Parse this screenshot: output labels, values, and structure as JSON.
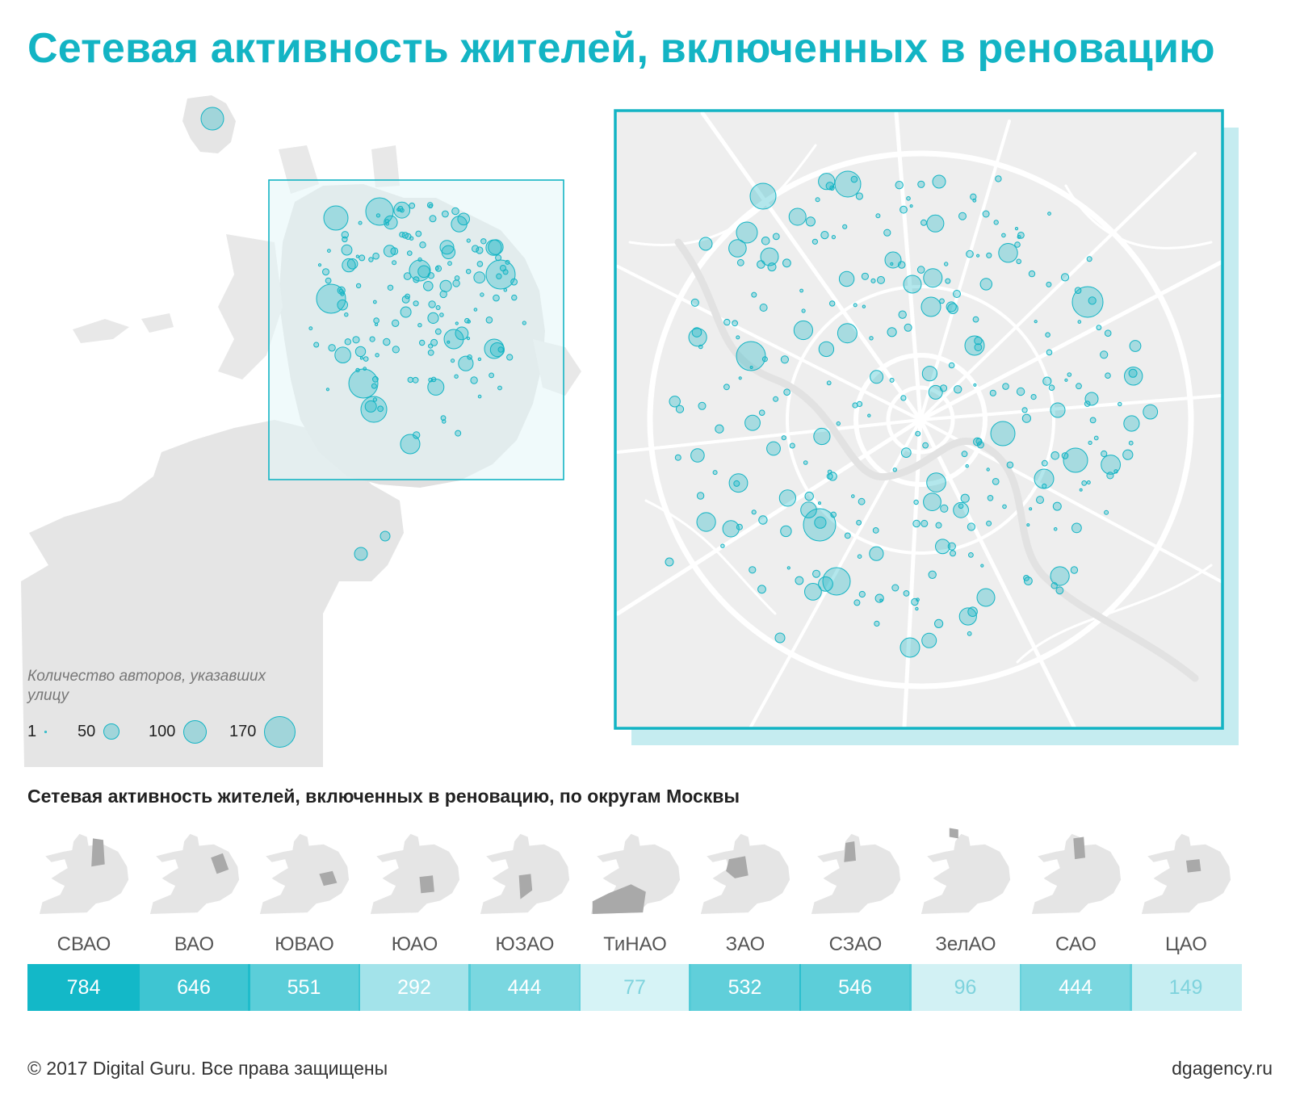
{
  "title": "Сетевая активность жителей, включенных в реновацию",
  "colors": {
    "accent": "#13b4c4",
    "map_land": "#e5e5e5",
    "map_frame_fill": "#e3f5f8",
    "zoom_shadow": "#c5ecf0",
    "road": "#ffffff",
    "district_highlight": "#a9a9a9"
  },
  "legend": {
    "title": "Количество авторов, указавших улицу",
    "items": [
      {
        "label": "1",
        "value": 1
      },
      {
        "label": "50",
        "value": 50
      },
      {
        "label": "100",
        "value": 100
      },
      {
        "label": "170",
        "value": 170
      }
    ]
  },
  "subtitle": "Сетевая активность жителей, включенных в реновацию, по округам Москвы",
  "districts": [
    {
      "name": "СВАО",
      "value": 784
    },
    {
      "name": "ВАО",
      "value": 646
    },
    {
      "name": "ЮВАО",
      "value": 551
    },
    {
      "name": "ЮАО",
      "value": 292
    },
    {
      "name": "ЮЗАО",
      "value": 444
    },
    {
      "name": "ТиНАО",
      "value": 77
    },
    {
      "name": "ЗАО",
      "value": 532
    },
    {
      "name": "СЗАО",
      "value": 546
    },
    {
      "name": "ЗелАО",
      "value": 96
    },
    {
      "name": "САО",
      "value": 444
    },
    {
      "name": "ЦАО",
      "value": 149
    }
  ],
  "footer": {
    "copyright": "© 2017 Digital Guru. Все права защищены",
    "site": "dgagency.ru"
  }
}
